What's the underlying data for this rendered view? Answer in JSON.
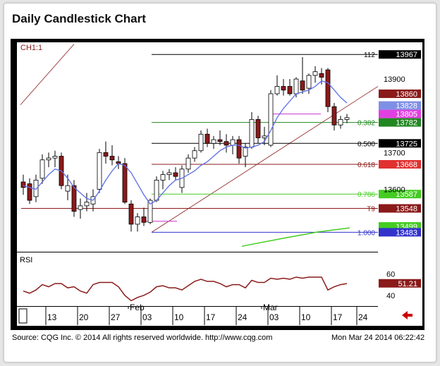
{
  "title": "Daily Candlestick Chart",
  "footer": {
    "source": "Source: CQG Inc. © 2014 All rights reserved worldwide. http://www.cqg.com",
    "timestamp": "Mon Mar 24 2014 06:22:42"
  },
  "colors": {
    "up_body": "#ffffff",
    "down_body": "#8b1a1a",
    "ma_line": "#5b6ee8",
    "rsi_line": "#8b1a1a",
    "long_ma": "#44cc22",
    "trend_line": "#8b1a1a",
    "arrow": "#cc0000"
  },
  "chart_data": [
    {
      "type": "candlestick",
      "title": "",
      "overlay_label": "CH1:1",
      "ylim": [
        13430,
        14000
      ],
      "x_tick_labels": [
        "13",
        "20",
        "27",
        "Feb",
        "03",
        "10",
        "17",
        "24",
        "Mar",
        "03",
        "10",
        "17",
        "24"
      ],
      "y_tick_labels": [
        "13900",
        "13700",
        "13600"
      ],
      "candles": [
        {
          "o": 13620,
          "h": 13640,
          "l": 13585,
          "c": 13605
        },
        {
          "o": 13615,
          "h": 13630,
          "l": 13560,
          "c": 13570
        },
        {
          "o": 13580,
          "h": 13640,
          "l": 13565,
          "c": 13625
        },
        {
          "o": 13630,
          "h": 13695,
          "l": 13615,
          "c": 13680
        },
        {
          "o": 13680,
          "h": 13700,
          "l": 13660,
          "c": 13685
        },
        {
          "o": 13685,
          "h": 13705,
          "l": 13660,
          "c": 13690
        },
        {
          "o": 13690,
          "h": 13700,
          "l": 13600,
          "c": 13610
        },
        {
          "o": 13595,
          "h": 13640,
          "l": 13570,
          "c": 13610
        },
        {
          "o": 13610,
          "h": 13625,
          "l": 13525,
          "c": 13540
        },
        {
          "o": 13545,
          "h": 13575,
          "l": 13520,
          "c": 13555
        },
        {
          "o": 13555,
          "h": 13590,
          "l": 13540,
          "c": 13565
        },
        {
          "o": 13560,
          "h": 13600,
          "l": 13540,
          "c": 13580
        },
        {
          "o": 13600,
          "h": 13710,
          "l": 13590,
          "c": 13700
        },
        {
          "o": 13700,
          "h": 13730,
          "l": 13670,
          "c": 13690
        },
        {
          "o": 13690,
          "h": 13720,
          "l": 13665,
          "c": 13680
        },
        {
          "o": 13675,
          "h": 13690,
          "l": 13655,
          "c": 13670
        },
        {
          "o": 13670,
          "h": 13685,
          "l": 13560,
          "c": 13565
        },
        {
          "o": 13560,
          "h": 13570,
          "l": 13485,
          "c": 13505
        },
        {
          "o": 13505,
          "h": 13535,
          "l": 13485,
          "c": 13525
        },
        {
          "o": 13525,
          "h": 13550,
          "l": 13500,
          "c": 13510
        },
        {
          "o": 13510,
          "h": 13575,
          "l": 13505,
          "c": 13570
        },
        {
          "o": 13570,
          "h": 13635,
          "l": 13565,
          "c": 13625
        },
        {
          "o": 13625,
          "h": 13650,
          "l": 13600,
          "c": 13640
        },
        {
          "o": 13640,
          "h": 13655,
          "l": 13625,
          "c": 13645
        },
        {
          "o": 13645,
          "h": 13660,
          "l": 13625,
          "c": 13635
        },
        {
          "o": 13605,
          "h": 13665,
          "l": 13590,
          "c": 13655
        },
        {
          "o": 13655,
          "h": 13695,
          "l": 13645,
          "c": 13685
        },
        {
          "o": 13685,
          "h": 13715,
          "l": 13675,
          "c": 13705
        },
        {
          "o": 13705,
          "h": 13760,
          "l": 13700,
          "c": 13750
        },
        {
          "o": 13750,
          "h": 13765,
          "l": 13715,
          "c": 13725
        },
        {
          "o": 13725,
          "h": 13745,
          "l": 13710,
          "c": 13735
        },
        {
          "o": 13735,
          "h": 13760,
          "l": 13720,
          "c": 13730
        },
        {
          "o": 13730,
          "h": 13750,
          "l": 13700,
          "c": 13720
        },
        {
          "o": 13720,
          "h": 13745,
          "l": 13695,
          "c": 13735
        },
        {
          "o": 13735,
          "h": 13745,
          "l": 13670,
          "c": 13685
        },
        {
          "o": 13690,
          "h": 13725,
          "l": 13660,
          "c": 13715
        },
        {
          "o": 13715,
          "h": 13810,
          "l": 13710,
          "c": 13790
        },
        {
          "o": 13790,
          "h": 13800,
          "l": 13725,
          "c": 13740
        },
        {
          "o": 13740,
          "h": 13770,
          "l": 13720,
          "c": 13745
        },
        {
          "o": 13720,
          "h": 13870,
          "l": 13715,
          "c": 13860
        },
        {
          "o": 13860,
          "h": 13910,
          "l": 13855,
          "c": 13880
        },
        {
          "o": 13880,
          "h": 13900,
          "l": 13855,
          "c": 13870
        },
        {
          "o": 13880,
          "h": 13900,
          "l": 13855,
          "c": 13860
        },
        {
          "o": 13860,
          "h": 13905,
          "l": 13850,
          "c": 13900
        },
        {
          "o": 13895,
          "h": 13960,
          "l": 13860,
          "c": 13870
        },
        {
          "o": 13875,
          "h": 13915,
          "l": 13860,
          "c": 13910
        },
        {
          "o": 13910,
          "h": 13935,
          "l": 13890,
          "c": 13920
        },
        {
          "o": 13915,
          "h": 13930,
          "l": 13885,
          "c": 13905
        },
        {
          "o": 13925,
          "h": 13930,
          "l": 13810,
          "c": 13825
        },
        {
          "o": 13825,
          "h": 13835,
          "l": 13760,
          "c": 13775
        },
        {
          "o": 13775,
          "h": 13800,
          "l": 13765,
          "c": 13790
        },
        {
          "o": 13790,
          "h": 13805,
          "l": 13780,
          "c": 13795
        }
      ],
      "moving_average": [
        13610,
        13605,
        13600,
        13620,
        13640,
        13655,
        13650,
        13630,
        13605,
        13590,
        13575,
        13570,
        13595,
        13625,
        13650,
        13670,
        13665,
        13645,
        13615,
        13585,
        13560,
        13570,
        13590,
        13610,
        13625,
        13630,
        13640,
        13650,
        13665,
        13675,
        13690,
        13705,
        13715,
        13720,
        13720,
        13712,
        13715,
        13720,
        13730,
        13760,
        13795,
        13820,
        13840,
        13860,
        13865,
        13870,
        13880,
        13895,
        13890,
        13870,
        13850,
        13835
      ],
      "long_ma": [
        {
          "i": 34,
          "v": 13445
        },
        {
          "i": 40,
          "v": 13465
        },
        {
          "i": 46,
          "v": 13484
        },
        {
          "i": 51,
          "v": 13495
        }
      ],
      "fib_levels": [
        {
          "label": "112",
          "value": 13967
        },
        {
          "label": "0.382",
          "value": 13782
        },
        {
          "label": "0.500",
          "value": 13725
        },
        {
          "label": "0.618",
          "value": 13668
        },
        {
          "label": "0.786",
          "value": 13587
        },
        {
          "label": "T9",
          "value": 13548
        },
        {
          "label": "1.000",
          "value": 13483
        }
      ],
      "price_tags": [
        {
          "value": 13967,
          "text": "13967"
        },
        {
          "value": 13860,
          "text": "13860"
        },
        {
          "value": 13828,
          "text": "13828"
        },
        {
          "value": 13805,
          "text": "13805"
        },
        {
          "value": 13782,
          "text": "13782"
        },
        {
          "value": 13725,
          "text": "13725"
        },
        {
          "value": 13668,
          "text": "13668"
        },
        {
          "value": 13587,
          "text": "13587"
        },
        {
          "value": 13548,
          "text": "13548"
        },
        {
          "value": 13499,
          "text": "13499"
        },
        {
          "value": 13483,
          "text": "13483"
        }
      ]
    },
    {
      "type": "line",
      "title": "RSI",
      "ylim": [
        30,
        80
      ],
      "y_tick_labels": [
        "60",
        "40"
      ],
      "current_value": "51.21",
      "values": [
        44,
        42,
        45,
        50,
        48,
        51,
        51,
        47,
        48,
        44,
        42,
        50,
        52,
        52,
        52,
        48,
        40,
        35,
        38,
        40,
        43,
        48,
        49,
        47,
        47,
        45,
        49,
        53,
        55,
        53,
        53,
        51,
        48,
        50,
        50,
        47,
        54,
        52,
        52,
        56,
        55,
        56,
        55,
        57,
        56,
        57,
        57,
        57,
        45,
        48,
        50,
        51
      ]
    }
  ]
}
